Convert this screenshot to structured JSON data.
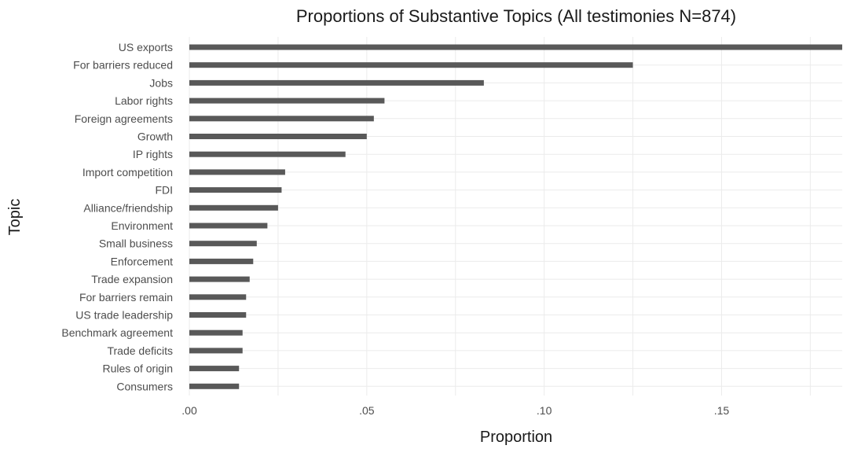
{
  "chart_data": {
    "type": "bar",
    "orientation": "horizontal",
    "title": "Proportions of Substantive Topics (All testimonies N=874)",
    "xlabel": "Proportion",
    "ylabel": "Topic",
    "categories": [
      "US exports",
      "For barriers reduced",
      "Jobs",
      "Labor rights",
      "Foreign agreements",
      "Growth",
      "IP rights",
      "Import competition",
      "FDI",
      "Alliance/friendship",
      "Environment",
      "Small business",
      "Enforcement",
      "Trade expansion",
      "For barriers remain",
      "US trade leadership",
      "Benchmark agreement",
      "Trade deficits",
      "Rules of origin",
      "Consumers"
    ],
    "values": [
      0.184,
      0.125,
      0.083,
      0.055,
      0.052,
      0.05,
      0.044,
      0.027,
      0.026,
      0.025,
      0.022,
      0.019,
      0.018,
      0.017,
      0.016,
      0.016,
      0.015,
      0.015,
      0.014,
      0.014
    ],
    "xticks": [
      0,
      0.05,
      0.1,
      0.15
    ],
    "xtick_labels": [
      ".00",
      ".05",
      ".10",
      ".15"
    ],
    "xlim": [
      0,
      0.184
    ],
    "grid": true,
    "bar_color": "#595959"
  }
}
